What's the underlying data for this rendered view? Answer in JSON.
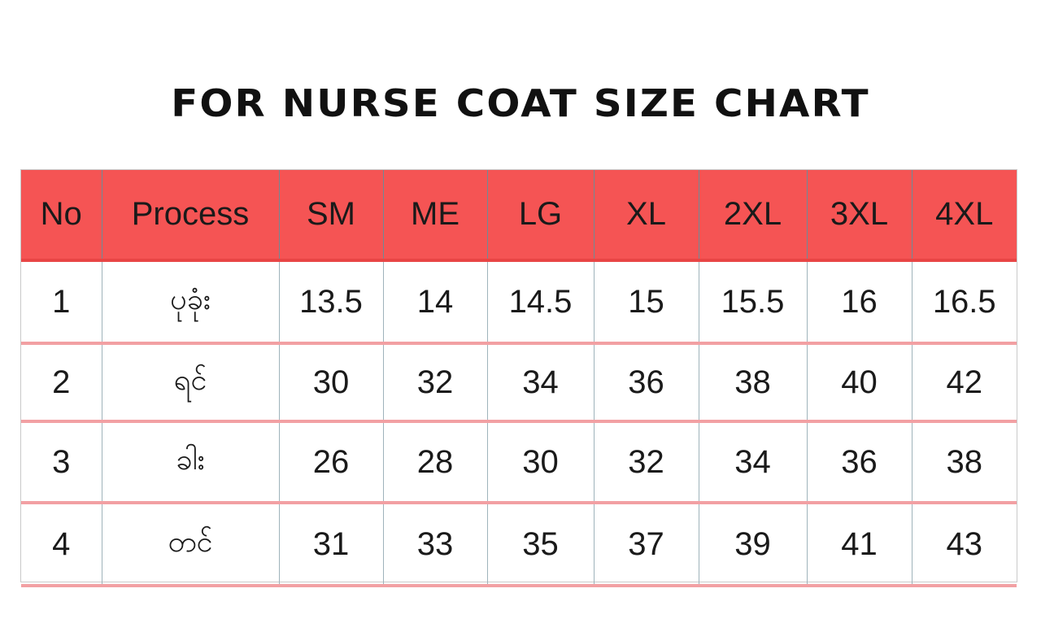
{
  "title": "FOR NURSE COAT SIZE CHART",
  "colors": {
    "header_bg": "#f55454",
    "row_divider": "#f2a0a3",
    "column_line": "#9fb3bb"
  },
  "table": {
    "headers": [
      "No",
      "Process",
      "SM",
      "ME",
      "LG",
      "XL",
      "2XL",
      "3XL",
      "4XL"
    ],
    "rows": [
      [
        "1",
        "ပုခုံး",
        "13.5",
        "14",
        "14.5",
        "15",
        "15.5",
        "16",
        "16.5"
      ],
      [
        "2",
        "ရင်",
        "30",
        "32",
        "34",
        "36",
        "38",
        "40",
        "42"
      ],
      [
        "3",
        "ခါး",
        "26",
        "28",
        "30",
        "32",
        "34",
        "36",
        "38"
      ],
      [
        "4",
        "တင်",
        "31",
        "33",
        "35",
        "37",
        "39",
        "41",
        "43"
      ]
    ]
  }
}
